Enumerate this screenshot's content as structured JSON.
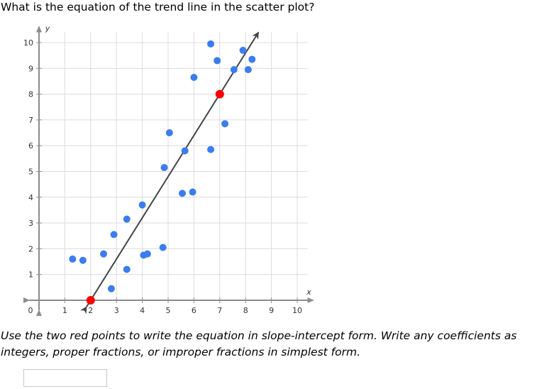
{
  "question": "What is the equation of the trend line in the scatter plot?",
  "instructions": "Use the two red points to write the equation in slope-intercept form. Write any coefficients as integers, proper fractions, or improper fractions in simplest form.",
  "answer": {
    "value": "",
    "placeholder": ""
  },
  "chart_data": {
    "type": "scatter",
    "xlabel": "x",
    "ylabel": "y",
    "xlim": [
      0,
      10.4
    ],
    "ylim": [
      0,
      10.4
    ],
    "x_ticks": [
      "1",
      "2",
      "3",
      "4",
      "5",
      "6",
      "7",
      "8",
      "9",
      "10"
    ],
    "y_ticks": [
      "1",
      "2",
      "3",
      "4",
      "5",
      "6",
      "7",
      "8",
      "9",
      "10"
    ],
    "origin_label": "0",
    "grid": true,
    "colors": {
      "points": "#3b7ded",
      "highlight": "#ff0000",
      "line": "#444444",
      "axis": "#8c8c8c",
      "grid": "#dcdcdc"
    },
    "points": [
      [
        1.3,
        1.6
      ],
      [
        1.7,
        1.55
      ],
      [
        2.5,
        1.8
      ],
      [
        2.8,
        0.45
      ],
      [
        2.9,
        2.55
      ],
      [
        3.4,
        1.2
      ],
      [
        3.4,
        3.15
      ],
      [
        4.0,
        3.7
      ],
      [
        4.05,
        1.75
      ],
      [
        4.2,
        1.8
      ],
      [
        4.8,
        2.05
      ],
      [
        4.85,
        5.15
      ],
      [
        5.05,
        6.5
      ],
      [
        5.55,
        4.15
      ],
      [
        5.65,
        5.8
      ],
      [
        5.95,
        4.2
      ],
      [
        6.0,
        8.65
      ],
      [
        6.65,
        5.85
      ],
      [
        6.65,
        9.95
      ],
      [
        6.9,
        9.3
      ],
      [
        7.2,
        6.85
      ],
      [
        7.55,
        8.95
      ],
      [
        7.9,
        9.7
      ],
      [
        8.1,
        8.95
      ],
      [
        8.25,
        9.35
      ]
    ],
    "highlight_points": [
      [
        2,
        0
      ],
      [
        7,
        8
      ]
    ],
    "trend_line": {
      "from": [
        2,
        0
      ],
      "to": [
        8.5,
        10.4
      ],
      "arrow_end": true,
      "arrow_start": true
    }
  }
}
